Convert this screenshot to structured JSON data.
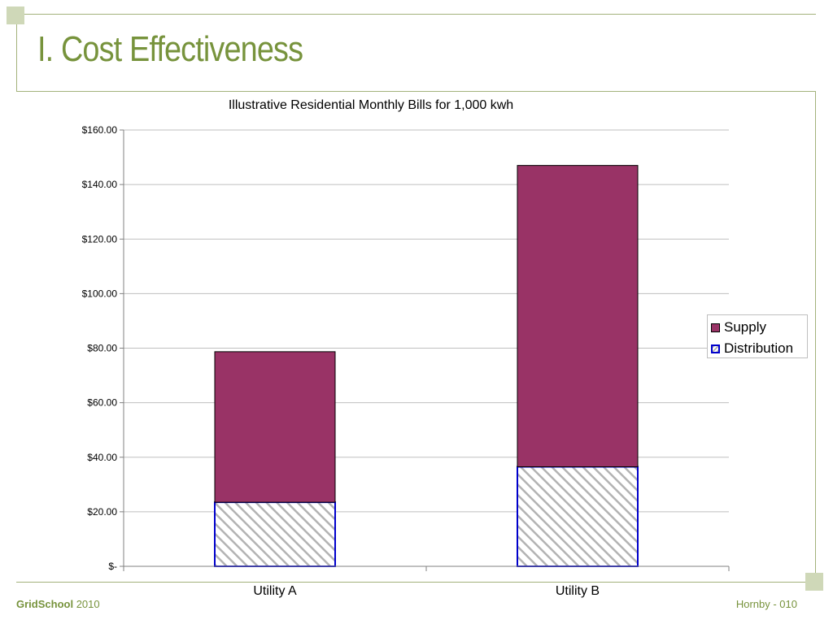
{
  "slide": {
    "title": "I. Cost Effectiveness",
    "footer_brand_bold": "GridSchool",
    "footer_brand_year": "2010",
    "footer_page": "Hornby  - 010"
  },
  "colors": {
    "frame": "#a3b27b",
    "accent": "#77933c",
    "supply": "#993366",
    "distribution_border": "#0000cc",
    "distribution_hatch": "#b3b3b3"
  },
  "chart_data": {
    "type": "bar",
    "stacked": true,
    "title": "Illustrative Residential Monthly Bills for 1,000 kwh",
    "xlabel": "",
    "ylabel": "",
    "categories": [
      "Utility A",
      "Utility B"
    ],
    "series": [
      {
        "name": "Distribution",
        "values": [
          23.5,
          36.5
        ],
        "fill": "hatch",
        "color": "#0000cc"
      },
      {
        "name": "Supply",
        "values": [
          55.2,
          110.5
        ],
        "fill": "solid",
        "color": "#993366"
      }
    ],
    "ylim": [
      0,
      160
    ],
    "yticks": [
      0,
      20,
      40,
      60,
      80,
      100,
      120,
      140,
      160
    ],
    "ytick_labels": [
      "$-",
      "$20.00",
      "$40.00",
      "$60.00",
      "$80.00",
      "$100.00",
      "$120.00",
      "$140.00",
      "$160.00"
    ],
    "legend": {
      "position": "right",
      "entries": [
        "Supply",
        "Distribution"
      ]
    },
    "grid": true
  }
}
